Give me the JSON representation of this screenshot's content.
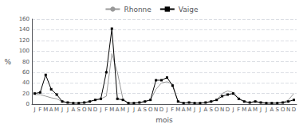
{
  "chart_data": {
    "type": "line",
    "xlabel": "mois",
    "ylabel": "%",
    "categories": [
      "J",
      "F",
      "M",
      "A",
      "M",
      "J",
      "J",
      "A",
      "S",
      "O",
      "N",
      "D",
      "J",
      "F",
      "M",
      "A",
      "M",
      "J",
      "J",
      "A",
      "S",
      "O",
      "N",
      "D",
      "J",
      "F",
      "M",
      "A",
      "M",
      "J",
      "J",
      "A",
      "S",
      "O",
      "N",
      "D",
      "J",
      "F",
      "M",
      "A",
      "M",
      "J",
      "J",
      "A",
      "S",
      "O",
      "N",
      "D"
    ],
    "series": [
      {
        "name": "Rhonne",
        "color": "#999999",
        "marker": "none",
        "values": [
          18,
          18,
          15,
          12,
          10,
          5,
          3,
          2,
          2,
          3,
          5,
          8,
          10,
          15,
          95,
          60,
          10,
          2,
          2,
          3,
          5,
          8,
          28,
          40,
          42,
          38,
          5,
          2,
          3,
          2,
          2,
          3,
          5,
          8,
          20,
          25,
          22,
          12,
          5,
          3,
          5,
          3,
          2,
          2,
          2,
          3,
          8,
          20
        ]
      },
      {
        "name": "Vaige",
        "color": "#000000",
        "marker": "square",
        "values": [
          20,
          22,
          55,
          28,
          18,
          5,
          3,
          2,
          2,
          3,
          5,
          8,
          10,
          60,
          142,
          10,
          8,
          2,
          2,
          3,
          5,
          8,
          45,
          45,
          50,
          35,
          5,
          2,
          3,
          2,
          2,
          3,
          5,
          8,
          15,
          18,
          20,
          10,
          5,
          3,
          5,
          3,
          2,
          2,
          2,
          3,
          5,
          8
        ]
      }
    ],
    "ylim": [
      0,
      160
    ],
    "yticks": [
      0,
      20,
      40,
      60,
      80,
      100,
      120,
      140,
      160
    ],
    "grid": true,
    "legend": "top"
  }
}
